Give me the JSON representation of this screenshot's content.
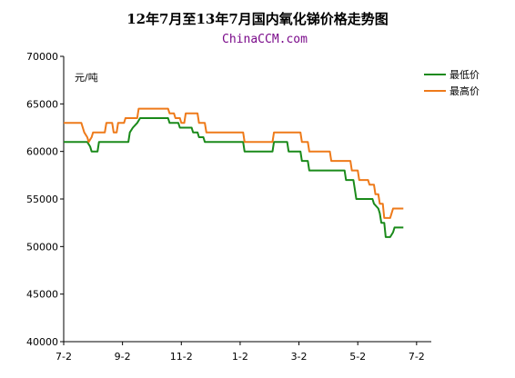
{
  "chart_data": {
    "type": "line",
    "title": "12年7月至13年7月国内氧化锑价格走势图",
    "subtitle": "ChinaCCM.com",
    "unit_label": "元/吨",
    "ylim": [
      40000,
      70000
    ],
    "y_ticks": [
      40000,
      45000,
      50000,
      55000,
      60000,
      65000,
      70000
    ],
    "x_ticks": [
      "7-2",
      "9-2",
      "11-2",
      "1-2",
      "3-2",
      "5-2",
      "7-2"
    ],
    "xlim": [
      0,
      12.5
    ],
    "grid": false,
    "legend_position": "top-right",
    "colors": {
      "low": "#1a8a1a",
      "high": "#ee7a1a",
      "axis": "#000000",
      "subtitle": "#7a0a8a"
    },
    "series": [
      {
        "name": "最低价",
        "color": "#1a8a1a",
        "points": [
          [
            0,
            61000
          ],
          [
            0.8,
            61000
          ],
          [
            0.9,
            60500
          ],
          [
            0.95,
            60000
          ],
          [
            1.15,
            60000
          ],
          [
            1.2,
            61000
          ],
          [
            2.2,
            61000
          ],
          [
            2.25,
            62000
          ],
          [
            2.35,
            62500
          ],
          [
            2.5,
            63000
          ],
          [
            2.6,
            63500
          ],
          [
            3.55,
            63500
          ],
          [
            3.6,
            63000
          ],
          [
            3.9,
            63000
          ],
          [
            3.95,
            62500
          ],
          [
            4.35,
            62500
          ],
          [
            4.4,
            62000
          ],
          [
            4.55,
            62000
          ],
          [
            4.6,
            61500
          ],
          [
            4.75,
            61500
          ],
          [
            4.8,
            61000
          ],
          [
            6.1,
            61000
          ],
          [
            6.15,
            60000
          ],
          [
            7.1,
            60000
          ],
          [
            7.15,
            61000
          ],
          [
            7.6,
            61000
          ],
          [
            7.65,
            60000
          ],
          [
            8.05,
            60000
          ],
          [
            8.1,
            59000
          ],
          [
            8.3,
            59000
          ],
          [
            8.35,
            58000
          ],
          [
            9.55,
            58000
          ],
          [
            9.6,
            57000
          ],
          [
            9.85,
            57000
          ],
          [
            9.9,
            56000
          ],
          [
            9.95,
            55000
          ],
          [
            10.5,
            55000
          ],
          [
            10.55,
            54500
          ],
          [
            10.7,
            54000
          ],
          [
            10.75,
            53500
          ],
          [
            10.8,
            52500
          ],
          [
            10.9,
            52500
          ],
          [
            10.95,
            51000
          ],
          [
            11.1,
            51000
          ],
          [
            11.2,
            51500
          ],
          [
            11.25,
            52000
          ],
          [
            11.55,
            52000
          ]
        ]
      },
      {
        "name": "最高价",
        "color": "#ee7a1a",
        "points": [
          [
            0,
            63000
          ],
          [
            0.6,
            63000
          ],
          [
            0.7,
            62000
          ],
          [
            0.8,
            61500
          ],
          [
            0.85,
            61000
          ],
          [
            0.95,
            61500
          ],
          [
            1.0,
            62000
          ],
          [
            1.4,
            62000
          ],
          [
            1.45,
            63000
          ],
          [
            1.65,
            63000
          ],
          [
            1.7,
            62000
          ],
          [
            1.8,
            62000
          ],
          [
            1.85,
            63000
          ],
          [
            2.05,
            63000
          ],
          [
            2.1,
            63500
          ],
          [
            2.5,
            63500
          ],
          [
            2.55,
            64500
          ],
          [
            3.55,
            64500
          ],
          [
            3.6,
            64000
          ],
          [
            3.75,
            64000
          ],
          [
            3.8,
            63500
          ],
          [
            3.95,
            63500
          ],
          [
            4.0,
            63000
          ],
          [
            4.1,
            63000
          ],
          [
            4.15,
            64000
          ],
          [
            4.55,
            64000
          ],
          [
            4.6,
            63000
          ],
          [
            4.8,
            63000
          ],
          [
            4.85,
            62000
          ],
          [
            6.1,
            62000
          ],
          [
            6.15,
            61000
          ],
          [
            7.1,
            61000
          ],
          [
            7.15,
            62000
          ],
          [
            8.05,
            62000
          ],
          [
            8.1,
            61000
          ],
          [
            8.3,
            61000
          ],
          [
            8.35,
            60000
          ],
          [
            9.05,
            60000
          ],
          [
            9.1,
            59000
          ],
          [
            9.75,
            59000
          ],
          [
            9.8,
            58000
          ],
          [
            10.0,
            58000
          ],
          [
            10.05,
            57000
          ],
          [
            10.35,
            57000
          ],
          [
            10.4,
            56500
          ],
          [
            10.55,
            56500
          ],
          [
            10.6,
            55500
          ],
          [
            10.7,
            55500
          ],
          [
            10.75,
            54500
          ],
          [
            10.85,
            54500
          ],
          [
            10.9,
            53000
          ],
          [
            11.1,
            53000
          ],
          [
            11.15,
            53500
          ],
          [
            11.2,
            54000
          ],
          [
            11.55,
            54000
          ]
        ]
      }
    ]
  }
}
